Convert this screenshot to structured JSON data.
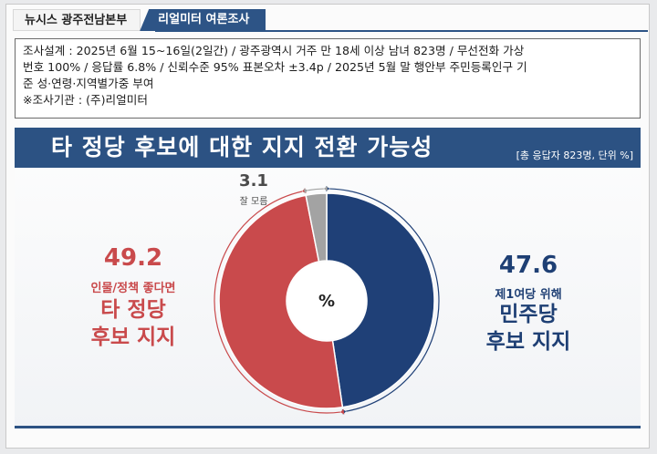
{
  "header": {
    "brand_tab": "뉴시스 광주전남본부",
    "source_tab": "리얼미터 여론조사"
  },
  "survey_info": {
    "line1": "조사설계 : 2025년 6월 15~16일(2일간) / 광주광역시 거주 만 18세 이상 남녀 823명 / 무선전화 가상",
    "line2": "번호 100% / 응답률 6.8% / 신뢰수준 95% 표본오차 ±3.4p / 2025년 5월 말 행안부 주민등록인구 기",
    "line3": "준 성·연령·지역별가중 부여",
    "line4": "※조사기관 : (주)리얼미터"
  },
  "chart_data": {
    "type": "pie",
    "title": "타 정당 후보에 대한 지지 전환 가능성",
    "unit_note": "[총 응답자 823명, 단위 %]",
    "center_label": "%",
    "slices": [
      {
        "value": 47.6,
        "value_label": "47.6",
        "sub_label": "제1여당 위해",
        "label_line1": "민주당",
        "label_line2": "후보 지지",
        "color": "#1f4077"
      },
      {
        "value": 49.2,
        "value_label": "49.2",
        "sub_label": "인물/정책 좋다면",
        "label_line1": "타 정당",
        "label_line2": "후보 지지",
        "color": "#c94a4c"
      },
      {
        "value": 3.1,
        "value_label": "3.1",
        "sub_label": "잘 모름",
        "color": "#a3a3a3"
      }
    ]
  }
}
